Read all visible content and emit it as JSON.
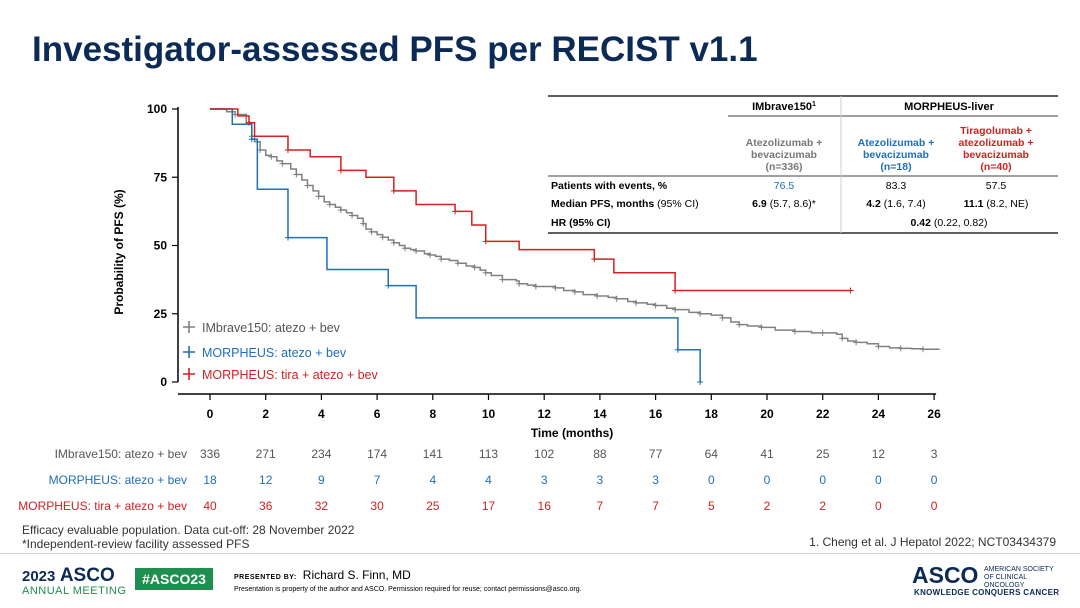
{
  "title": "Investigator-assessed PFS per RECIST v1.1",
  "chart_data": {
    "type": "line",
    "subtype": "kaplan-meier",
    "xlabel": "Time (months)",
    "ylabel": "Probability of PFS (%)",
    "xlim": [
      0,
      26
    ],
    "ylim": [
      0,
      100
    ],
    "x_ticks": [
      0,
      2,
      4,
      6,
      8,
      10,
      12,
      14,
      16,
      18,
      20,
      22,
      24,
      26
    ],
    "y_ticks": [
      0,
      25,
      50,
      75,
      100
    ],
    "legend_position": "bottom-left",
    "series": [
      {
        "name": "IMbrave150: atezo + bev",
        "color": "#808080",
        "x": [
          0,
          0.6,
          0.9,
          1.3,
          1.5,
          1.6,
          1.8,
          2,
          2.2,
          2.4,
          2.6,
          2.9,
          3.1,
          3.3,
          3.5,
          3.7,
          3.9,
          4.1,
          4.3,
          4.5,
          4.7,
          4.9,
          5.1,
          5.3,
          5.5,
          5.6,
          5.8,
          6,
          6.2,
          6.4,
          6.6,
          6.8,
          7,
          7.2,
          7.4,
          7.7,
          7.9,
          8.1,
          8.3,
          8.6,
          8.9,
          9.2,
          9.5,
          9.7,
          9.9,
          10.1,
          10.5,
          11,
          11.1,
          11.4,
          11.7,
          12.1,
          12.4,
          12.7,
          13.1,
          13.4,
          13.9,
          14.3,
          14.6,
          15,
          15.3,
          15.7,
          16,
          16.4,
          16.7,
          17.2,
          17.6,
          18,
          18.4,
          18.7,
          19,
          19.3,
          19.8,
          20.3,
          21,
          21.6,
          22,
          22.5,
          22.7,
          22.9,
          23.2,
          23.6,
          24,
          24.4,
          24.8,
          25.2,
          25.6,
          26.2
        ],
        "y": [
          100,
          99,
          98,
          95,
          90,
          88,
          85,
          83,
          82.5,
          81,
          80,
          78,
          76,
          74,
          72,
          70,
          68,
          66,
          65,
          64,
          63,
          62,
          61,
          60,
          58,
          56,
          55,
          54,
          53,
          52,
          51,
          50,
          49,
          48.5,
          48,
          47,
          46.5,
          46,
          45,
          44.5,
          43.5,
          42.5,
          42,
          41,
          40,
          39,
          37.5,
          37,
          36,
          35.5,
          35,
          35,
          34.5,
          33.5,
          33,
          32,
          31.5,
          31,
          30.5,
          29.5,
          29,
          28.5,
          28,
          27,
          26.5,
          25.5,
          25,
          24.5,
          23.5,
          22,
          21,
          20.5,
          20,
          19,
          18.5,
          18,
          18,
          17.5,
          16,
          15,
          14.5,
          14,
          13,
          12.5,
          12.3,
          12.2,
          12,
          12
        ],
        "at_risk": [
          336,
          271,
          234,
          174,
          141,
          113,
          102,
          88,
          77,
          64,
          41,
          25,
          12,
          3
        ]
      },
      {
        "name": "MORPHEUS: atezo + bev",
        "color": "#1f6fba",
        "x": [
          0,
          0.8,
          1.5,
          1.7,
          2.8,
          4.2,
          6.4,
          7.4,
          16.8,
          17.6,
          17.6
        ],
        "y": [
          100,
          94.4,
          88.9,
          70.6,
          52.9,
          41.2,
          35.3,
          23.5,
          11.8,
          11.8,
          0
        ],
        "at_risk": [
          18,
          12,
          9,
          7,
          4,
          4,
          3,
          3,
          3,
          0,
          0,
          0,
          0,
          0
        ]
      },
      {
        "name": "MORPHEUS: tira + atezo + bev",
        "color": "#d42020",
        "x": [
          0,
          1,
          1.4,
          1.6,
          2.8,
          3.6,
          4.7,
          5.6,
          6.6,
          7.4,
          8.8,
          9.4,
          9.9,
          11.1,
          13.8,
          14.5,
          16.7,
          17.2,
          23
        ],
        "y": [
          100,
          97.5,
          95,
          90,
          85,
          82.5,
          77.5,
          75,
          70,
          65,
          62.5,
          57.5,
          51.5,
          48.5,
          45,
          40,
          33.5,
          33.5,
          33.5
        ],
        "at_risk": [
          40,
          36,
          32,
          30,
          25,
          17,
          16,
          7,
          7,
          5,
          2,
          2,
          0,
          0
        ]
      }
    ],
    "risk_table_times": [
      0,
      2,
      4,
      6,
      8,
      10,
      12,
      14,
      16,
      18,
      20,
      22,
      24,
      26
    ]
  },
  "table": {
    "group1_header": "IMbrave150",
    "group1_sup": "1",
    "group2_header": "MORPHEUS-liver",
    "col1_lines": [
      "Atezolizumab +",
      "bevacizumab",
      "(n=336)"
    ],
    "col2_lines": [
      "Atezolizumab +",
      "bevacizumab",
      "(n=18)"
    ],
    "col3_lines": [
      "Tiragolumab +",
      "atezolizumab +",
      "bevacizumab",
      "(n=40)"
    ],
    "row1_label": "Patients with events, %",
    "row1_vals": [
      "76.5",
      "83.3",
      "57.5"
    ],
    "row2_label_bold": "Median PFS, months",
    "row2_label_rest": " (95% CI)",
    "row2_vals": [
      [
        "6.9",
        " (5.7, 8.6)*"
      ],
      [
        "4.2",
        " (1.6, 7.4)"
      ],
      [
        "11.1",
        " (8.2, NE)"
      ]
    ],
    "row3_label": "HR (95% CI)",
    "row3_val_bold": "0.42",
    "row3_val_rest": " (0.22, 0.82)"
  },
  "colors": {
    "title": "#0b2a55",
    "imbrave": "#808080",
    "morpheus_ab": "#1f6fba",
    "morpheus_tira": "#d42020"
  },
  "footnote_line1": "Efficacy evaluable population. Data cut-off: 28 November 2022",
  "footnote_line2": "*Independent-review facility assessed PFS",
  "reference": "1. Cheng et al. J Hepatol 2022; NCT03434379",
  "footer": {
    "year": "2023",
    "asco": "ASCO",
    "annual_meeting": "ANNUAL MEETING",
    "hashtag": "#ASCO23",
    "presented_by": "PRESENTED BY:",
    "presenter": "Richard S. Finn, MD",
    "disclaimer": "Presentation is property of the author and ASCO. Permission required for reuse; contact permissions@asco.org.",
    "logo_name": "ASCO",
    "society": "AMERICAN SOCIETY OF CLINICAL ONCOLOGY",
    "tagline": "KNOWLEDGE CONQUERS CANCER"
  }
}
